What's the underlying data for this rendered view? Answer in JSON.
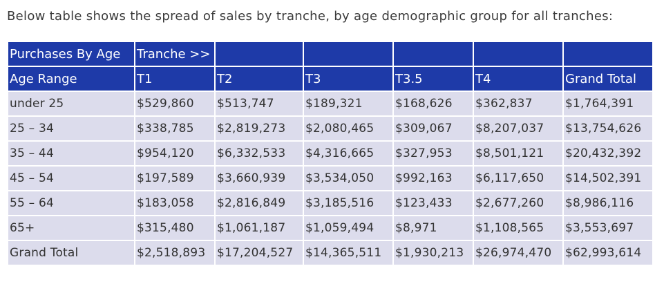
{
  "intro_text": "Below table shows the spread of sales by tranche, by age demographic group for all tranches:",
  "table": {
    "top_header": [
      "Purchases By Age",
      "Tranche >>",
      "",
      "",
      "",
      "",
      ""
    ],
    "columns": [
      "Age Range",
      "T1",
      "T2",
      "T3",
      "T3.5",
      "T4",
      "Grand Total"
    ],
    "rows": [
      [
        "under 25",
        "$529,860",
        "$513,747",
        "$189,321",
        "$168,626",
        "$362,837",
        "$1,764,391"
      ],
      [
        "25 – 34",
        "$338,785",
        "$2,819,273",
        "$2,080,465",
        "$309,067",
        "$8,207,037",
        "$13,754,626"
      ],
      [
        "35 – 44",
        "$954,120",
        "$6,332,533",
        "$4,316,665",
        "$327,953",
        "$8,501,121",
        "$20,432,392"
      ],
      [
        "45 – 54",
        "$197,589",
        "$3,660,939",
        "$3,534,050",
        "$992,163",
        "$6,117,650",
        "$14,502,391"
      ],
      [
        "55 – 64",
        "$183,058",
        "$2,816,849",
        "$3,185,516",
        "$123,433",
        "$2,677,260",
        "$8,986,116"
      ],
      [
        "65+",
        "$315,480",
        "$1,061,187",
        "$1,059,494",
        "$8,971",
        "$1,108,565",
        "$3,553,697"
      ],
      [
        "Grand Total",
        "$2,518,893",
        "$17,204,527",
        "$14,365,511",
        "$1,930,213",
        "$26,974,470",
        "$62,993,614"
      ]
    ]
  },
  "colors": {
    "header_bg": "#1e3aa8",
    "header_text": "#ffffff",
    "cell_bg": "#dcdcec",
    "cell_text": "#333333"
  }
}
